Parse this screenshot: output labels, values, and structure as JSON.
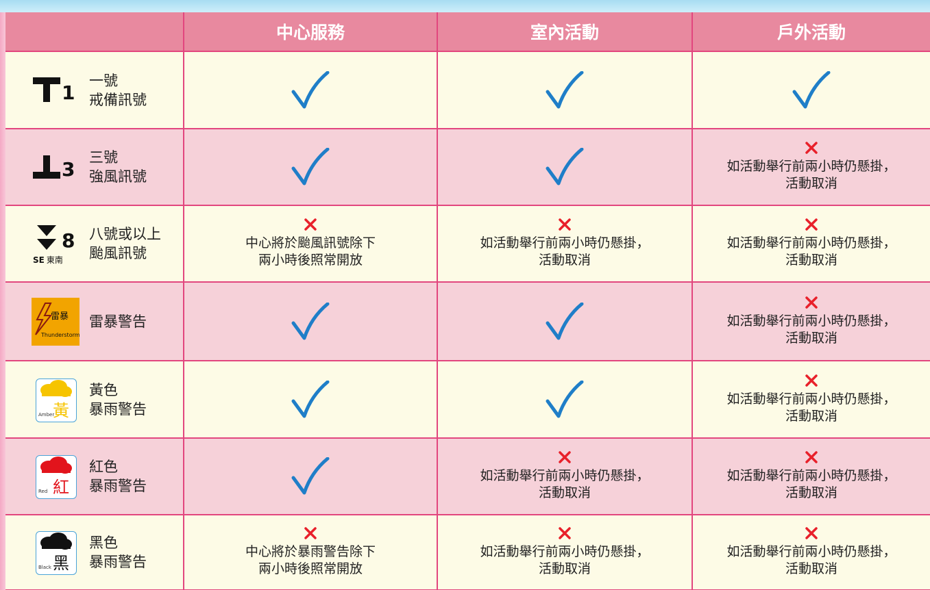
{
  "table": {
    "header": [
      "中心服務",
      "室內活動",
      "戶外活動"
    ],
    "rows": [
      {
        "icon": {
          "number": "1"
        },
        "label": [
          "一號",
          "戒備訊號"
        ],
        "cells": [
          null,
          null,
          null
        ]
      },
      {
        "icon": {
          "number": "3"
        },
        "label": [
          "三號",
          "強風訊號"
        ],
        "cells": [
          null,
          null,
          [
            "如活動舉行前兩小時仍懸掛，",
            "活動取消"
          ]
        ]
      },
      {
        "icon": {
          "number": "8",
          "dir_en": "SE",
          "dir": "東南"
        },
        "label": [
          "八號或以上",
          "颱風訊號"
        ],
        "cells": [
          [
            "中心將於颱風訊號除下",
            "兩小時後照常開放"
          ],
          [
            "如活動舉行前兩小時仍懸掛，",
            "活動取消"
          ],
          [
            "如活動舉行前兩小時仍懸掛，",
            "活動取消"
          ]
        ]
      },
      {
        "icon": {
          "text": "雷暴",
          "en": "Thunderstorm"
        },
        "label": [
          "雷暴警告"
        ],
        "cells": [
          null,
          null,
          [
            "如活動舉行前兩小時仍懸掛，",
            "活動取消"
          ]
        ]
      },
      {
        "icon": {
          "text": "黃",
          "en": "Amber"
        },
        "label": [
          "黃色",
          "暴雨警告"
        ],
        "cells": [
          null,
          null,
          [
            "如活動舉行前兩小時仍懸掛，",
            "活動取消"
          ]
        ]
      },
      {
        "icon": {
          "text": "紅",
          "en": "Red"
        },
        "label": [
          "紅色",
          "暴雨警告"
        ],
        "cells": [
          null,
          [
            "如活動舉行前兩小時仍懸掛，",
            "活動取消"
          ],
          [
            "如活動舉行前兩小時仍懸掛，",
            "活動取消"
          ]
        ]
      },
      {
        "icon": {
          "text": "黑",
          "en": "Black"
        },
        "label": [
          "黑色",
          "暴雨警告"
        ],
        "cells": [
          [
            "中心將於暴雨警告除下",
            "兩小時後照常開放"
          ],
          [
            "如活動舉行前兩小時仍懸掛，",
            "活動取消"
          ],
          [
            "如活動舉行前兩小時仍懸掛，",
            "活動取消"
          ]
        ]
      }
    ]
  }
}
